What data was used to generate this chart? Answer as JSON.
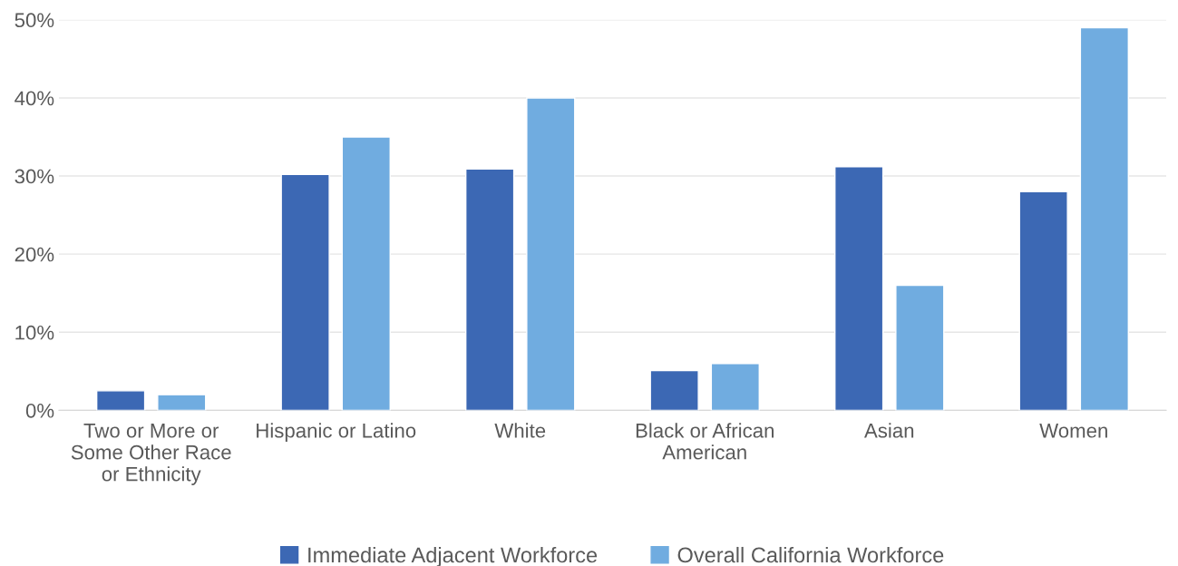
{
  "chart_data": {
    "type": "bar",
    "categories": [
      "Two or More or\nSome Other Race\nor Ethnicity",
      "Hispanic or Latino",
      "White",
      "Black or African\nAmerican",
      "Asian",
      "Women"
    ],
    "series": [
      {
        "name": "Immediate Adjacent Workforce",
        "color": "#3c68b4",
        "values": [
          2.5,
          30.2,
          30.9,
          5.1,
          31.2,
          28.0
        ]
      },
      {
        "name": "Overall California Workforce",
        "color": "#70ace0",
        "values": [
          2.0,
          35.0,
          40.0,
          6.0,
          16.0,
          49.0
        ]
      }
    ],
    "ylim": [
      0,
      50
    ],
    "yticks": [
      {
        "value": 0,
        "label": "0%"
      },
      {
        "value": 10,
        "label": "10%"
      },
      {
        "value": 20,
        "label": "20%"
      },
      {
        "value": 30,
        "label": "30%"
      },
      {
        "value": 40,
        "label": "40%"
      },
      {
        "value": 50,
        "label": "50%"
      }
    ],
    "grid": "y",
    "legend": "bottom"
  }
}
